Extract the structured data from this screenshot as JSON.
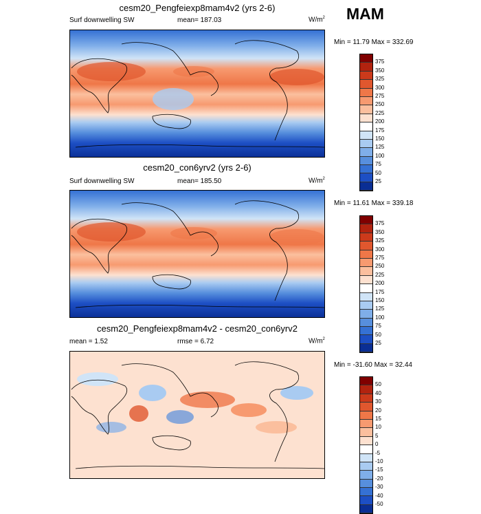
{
  "season": "MAM",
  "panels": [
    {
      "title": "cesm20_Pengfeiexp8mam4v2 (yrs 2-6)",
      "left_label": "Surf downwelling SW",
      "center_label": "mean= 187.03",
      "units": "W/m",
      "units_sup": "2",
      "minmax": "Min = 11.79 Max = 332.69",
      "colorbar": {
        "labels": [
          "375",
          "350",
          "325",
          "300",
          "275",
          "250",
          "225",
          "200",
          "175",
          "150",
          "125",
          "100",
          "75",
          "50",
          "25"
        ],
        "colors": [
          "#800000",
          "#b2230f",
          "#cc3a1b",
          "#e0572e",
          "#ef7748",
          "#f79a70",
          "#fbbf9e",
          "#fde1d0",
          "#ffffff",
          "#d0e4f7",
          "#a9cbf1",
          "#7faee9",
          "#578fdd",
          "#3571d4",
          "#1d4fc4",
          "#0a2e94"
        ]
      }
    },
    {
      "title": "cesm20_con6yrv2 (yrs 2-6)",
      "left_label": "Surf downwelling SW",
      "center_label": "mean= 185.50",
      "units": "W/m",
      "units_sup": "2",
      "minmax": "Min = 11.61 Max = 339.18",
      "colorbar": {
        "labels": [
          "375",
          "350",
          "325",
          "300",
          "275",
          "250",
          "225",
          "200",
          "175",
          "150",
          "125",
          "100",
          "75",
          "50",
          "25"
        ],
        "colors": [
          "#800000",
          "#b2230f",
          "#cc3a1b",
          "#e0572e",
          "#ef7748",
          "#f79a70",
          "#fbbf9e",
          "#fde1d0",
          "#ffffff",
          "#d0e4f7",
          "#a9cbf1",
          "#7faee9",
          "#578fdd",
          "#3571d4",
          "#1d4fc4",
          "#0a2e94"
        ]
      }
    },
    {
      "title": "cesm20_Pengfeiexp8mam4v2 - cesm20_con6yrv2",
      "left_label": "mean = 1.52",
      "center_label": "rmse = 6.72",
      "units": "W/m",
      "units_sup": "2",
      "minmax": "Min = -31.60 Max = 32.44",
      "colorbar": {
        "labels": [
          "50",
          "40",
          "30",
          "20",
          "15",
          "10",
          "5",
          "0",
          "-5",
          "-10",
          "-15",
          "-20",
          "-30",
          "-40",
          "-50"
        ],
        "colors": [
          "#800000",
          "#b2230f",
          "#cc3a1b",
          "#e0572e",
          "#ef7748",
          "#f79a70",
          "#fbbf9e",
          "#fde1d0",
          "#ffffff",
          "#d0e4f7",
          "#a9cbf1",
          "#7faee9",
          "#578fdd",
          "#3571d4",
          "#1d4fc4",
          "#0a2e94"
        ]
      }
    }
  ]
}
